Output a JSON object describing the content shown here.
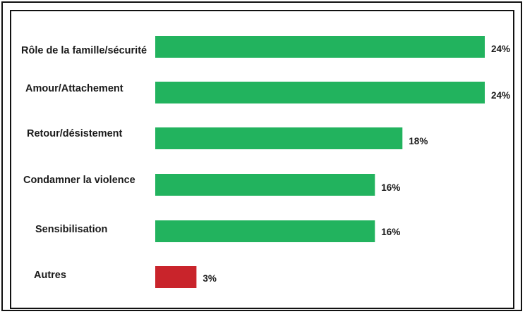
{
  "chart_data": {
    "type": "bar",
    "orientation": "horizontal",
    "categories": [
      "Rôle de la famille/sécurité",
      "Amour/Attachement",
      "Retour/désistement",
      "Condamner la violence",
      "Sensibilisation",
      "Autres"
    ],
    "values": [
      24,
      24,
      18,
      16,
      16,
      3
    ],
    "value_labels": [
      "24%",
      "24%",
      "18%",
      "16%",
      "16%",
      "3%"
    ],
    "bar_colors": [
      "#22b35e",
      "#22b35e",
      "#22b35e",
      "#22b35e",
      "#22b35e",
      "#c9242b"
    ],
    "title": "",
    "xlabel": "",
    "ylabel": "",
    "xlim": [
      0,
      24
    ],
    "grid": false,
    "legend": "none"
  }
}
